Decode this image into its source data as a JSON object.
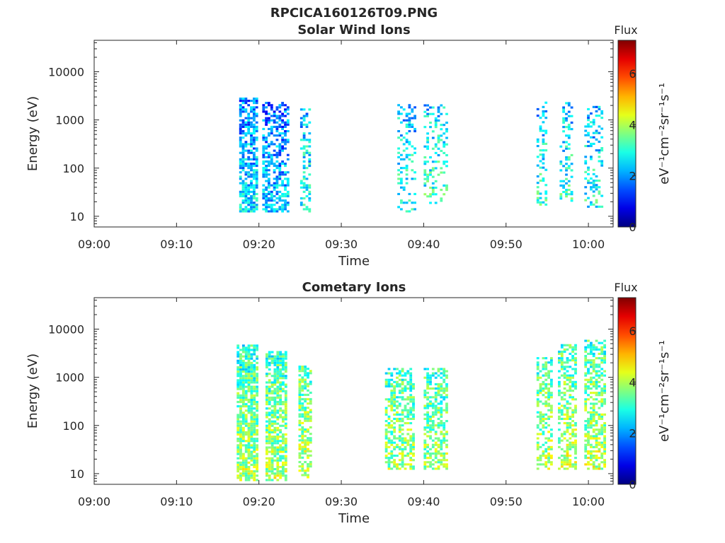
{
  "figure_title": "RPCICA160126T09.PNG",
  "chart_data": [
    {
      "type": "heatmap",
      "title": "Solar Wind Ions",
      "xlabel": "Time",
      "ylabel": "Energy (eV)",
      "y_scale": "log",
      "ylim": [
        6,
        45000
      ],
      "xlim": [
        "09:00",
        "10:03"
      ],
      "x_ticks": [
        "09:00",
        "09:10",
        "09:20",
        "09:30",
        "09:40",
        "09:50",
        "10:00"
      ],
      "y_ticks": [
        "10",
        "100",
        "1000",
        "10000"
      ],
      "colorbar": {
        "title": "Flux",
        "label": "eV⁻¹cm⁻²sr⁻¹s⁻¹",
        "ticks": [
          "0",
          "2",
          "4",
          "6"
        ],
        "range": [
          0,
          7.3
        ],
        "colormap": "jet"
      },
      "grid": false,
      "bursts": [
        {
          "start_min": 17.6,
          "end_min": 19.8,
          "emin": 12,
          "emax": 2700,
          "flux": 2.6,
          "density": 0.7
        },
        {
          "start_min": 20.4,
          "end_min": 23.5,
          "emin": 12,
          "emax": 2200,
          "flux": 2.4,
          "density": 0.55
        },
        {
          "start_min": 25.0,
          "end_min": 26.3,
          "emin": 12,
          "emax": 1700,
          "flux": 3.0,
          "density": 0.35
        },
        {
          "start_min": 36.8,
          "end_min": 38.8,
          "emin": 12,
          "emax": 2100,
          "flux": 3.0,
          "density": 0.3
        },
        {
          "start_min": 40.0,
          "end_min": 42.8,
          "emin": 18,
          "emax": 2100,
          "flux": 3.1,
          "density": 0.3
        },
        {
          "start_min": 53.7,
          "end_min": 54.9,
          "emin": 15,
          "emax": 2200,
          "flux": 3.0,
          "density": 0.3
        },
        {
          "start_min": 56.5,
          "end_min": 58.0,
          "emin": 20,
          "emax": 2200,
          "flux": 3.0,
          "density": 0.3
        },
        {
          "start_min": 59.5,
          "end_min": 61.7,
          "emin": 15,
          "emax": 1900,
          "flux": 2.9,
          "density": 0.3
        }
      ]
    },
    {
      "type": "heatmap",
      "title": "Cometary Ions",
      "xlabel": "Time",
      "ylabel": "Energy (eV)",
      "y_scale": "log",
      "ylim": [
        6,
        45000
      ],
      "xlim": [
        "09:00",
        "10:03"
      ],
      "x_ticks": [
        "09:00",
        "09:10",
        "09:20",
        "09:30",
        "09:40",
        "09:50",
        "10:00"
      ],
      "y_ticks": [
        "10",
        "100",
        "1000",
        "10000"
      ],
      "colorbar": {
        "title": "Flux",
        "label": "eV⁻¹cm⁻²sr⁻¹s⁻¹",
        "ticks": [
          "0",
          "2",
          "4",
          "6"
        ],
        "range": [
          0,
          7.3
        ],
        "colormap": "jet"
      },
      "grid": false,
      "bursts": [
        {
          "start_min": 17.3,
          "end_min": 19.8,
          "emin": 7,
          "emax": 4700,
          "flux": 4.0,
          "density": 0.8
        },
        {
          "start_min": 20.8,
          "end_min": 23.3,
          "emin": 7,
          "emax": 3500,
          "flux": 4.0,
          "density": 0.75
        },
        {
          "start_min": 24.8,
          "end_min": 26.3,
          "emin": 8,
          "emax": 1600,
          "flux": 4.1,
          "density": 0.6
        },
        {
          "start_min": 35.3,
          "end_min": 38.8,
          "emin": 12,
          "emax": 1500,
          "flux": 3.9,
          "density": 0.55
        },
        {
          "start_min": 40.0,
          "end_min": 42.8,
          "emin": 12,
          "emax": 1500,
          "flux": 3.9,
          "density": 0.55
        },
        {
          "start_min": 53.7,
          "end_min": 55.5,
          "emin": 12,
          "emax": 2400,
          "flux": 4.0,
          "density": 0.55
        },
        {
          "start_min": 56.3,
          "end_min": 58.6,
          "emin": 12,
          "emax": 4700,
          "flux": 4.1,
          "density": 0.55
        },
        {
          "start_min": 59.5,
          "end_min": 62.0,
          "emin": 12,
          "emax": 5600,
          "flux": 4.1,
          "density": 0.6
        }
      ]
    }
  ]
}
